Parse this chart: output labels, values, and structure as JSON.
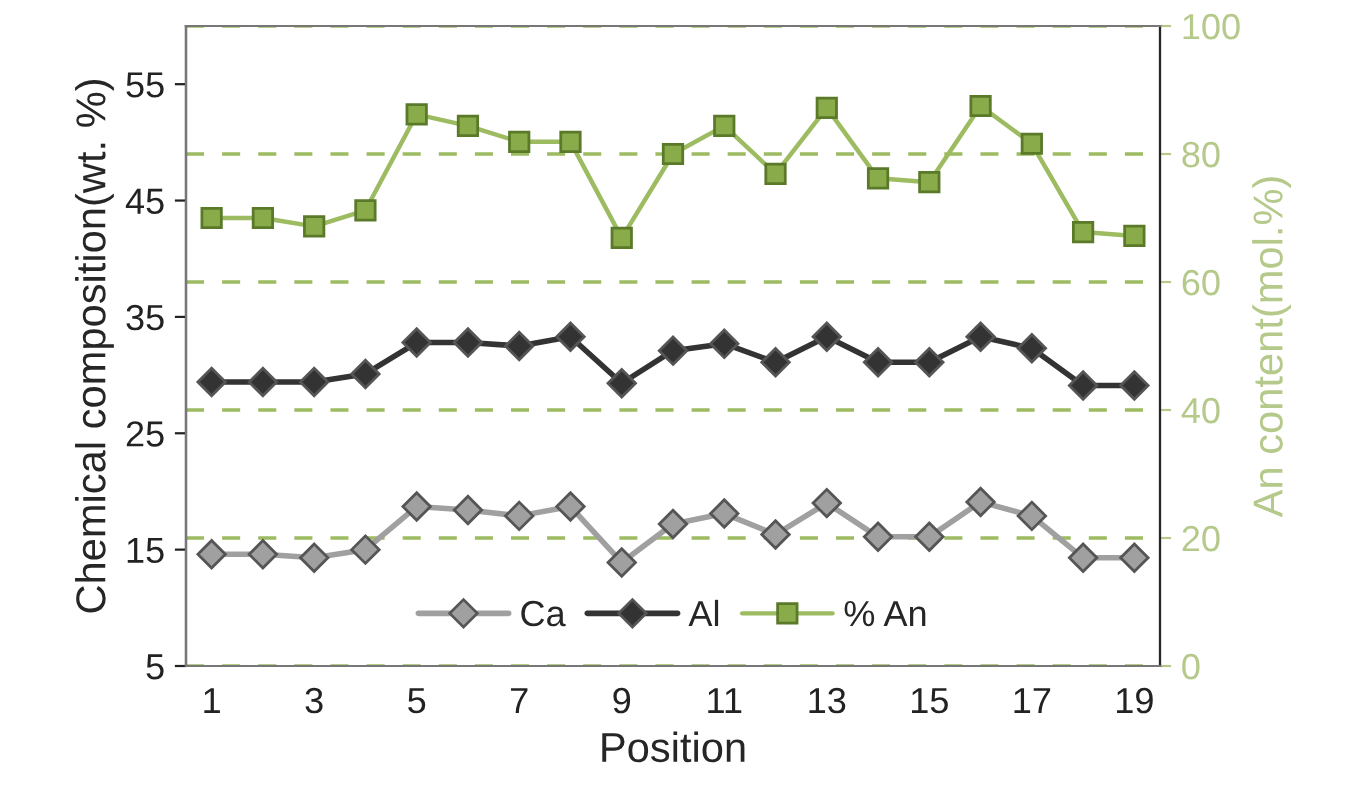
{
  "chart_data": {
    "type": "line",
    "xlabel": "Position",
    "ylabel": "Chemical composition(wt. %)",
    "y2label": "An content(mol.%)",
    "x": [
      1,
      2,
      3,
      4,
      5,
      6,
      7,
      8,
      9,
      10,
      11,
      12,
      13,
      14,
      15,
      16,
      17,
      18,
      19
    ],
    "xlim": [
      0.5,
      19.5
    ],
    "xticks": [
      1,
      3,
      5,
      7,
      9,
      11,
      13,
      15,
      17,
      19
    ],
    "ylim": [
      5,
      60
    ],
    "yticks": [
      5,
      15,
      25,
      35,
      45,
      55
    ],
    "y2lim": [
      0,
      100
    ],
    "y2ticks": [
      0,
      20,
      40,
      60,
      80,
      100
    ],
    "grid": "y2",
    "legend": "bottom",
    "marker": "diamond",
    "series": [
      {
        "name": "Ca",
        "color": "#a0a0a0",
        "values": [
          14.6,
          14.6,
          14.3,
          15.0,
          18.7,
          18.4,
          17.9,
          18.7,
          13.9,
          17.2,
          18.1,
          16.3,
          19.0,
          16.1,
          16.1,
          19.1,
          17.9,
          14.3,
          14.3
        ]
      },
      {
        "name": "Al",
        "color": "#333333",
        "values": [
          29.4,
          29.4,
          29.4,
          30.1,
          32.8,
          32.8,
          32.5,
          33.3,
          29.3,
          32.1,
          32.7,
          31.1,
          33.3,
          31.1,
          31.1,
          33.3,
          32.3,
          29.1,
          29.1
        ]
      },
      {
        "name": "% An",
        "color": "#9dbb61",
        "axis": "y2",
        "marker": "square",
        "values": [
          70.0,
          70.0,
          68.7,
          71.2,
          86.2,
          84.4,
          81.9,
          81.9,
          66.9,
          80.0,
          84.4,
          76.9,
          87.2,
          76.2,
          75.6,
          87.5,
          81.6,
          67.8,
          67.2
        ]
      }
    ]
  }
}
